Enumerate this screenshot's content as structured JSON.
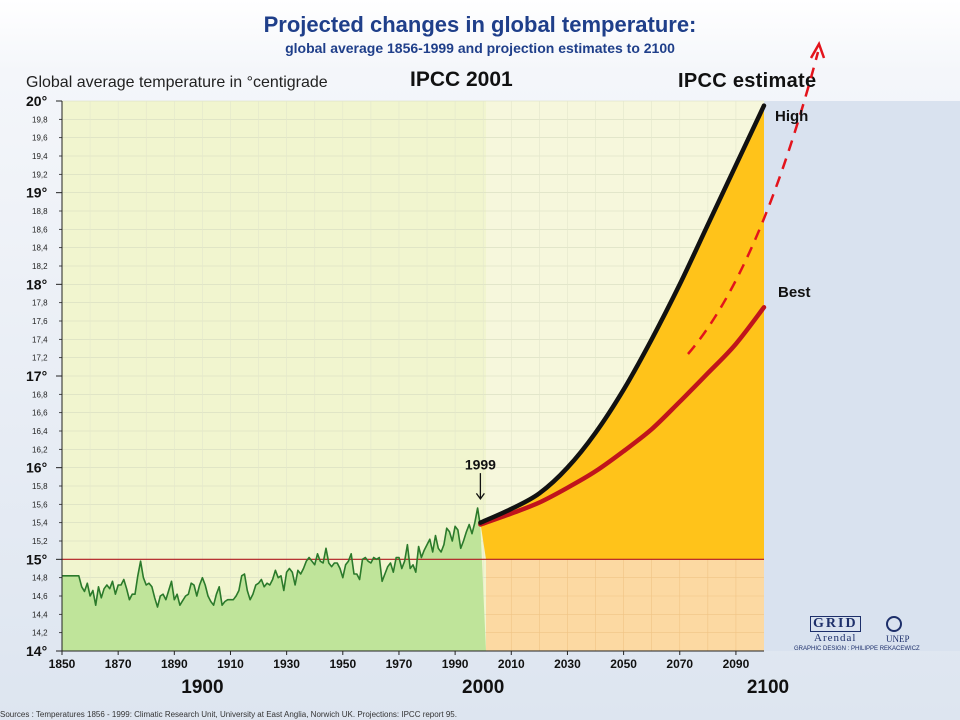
{
  "header": {
    "title": "Projected changes in global temperature:",
    "subtitle": "global average 1856-1999 and projection estimates to 2100",
    "y_axis_label": "Global average temperature in °centigrade",
    "ipcc_label": "IPCC 2001",
    "estimate_label": "IPCC estimate"
  },
  "annotations": {
    "year_marker": "1999",
    "high_label": "High",
    "best_label": "Best"
  },
  "logo": {
    "grid": "GRID",
    "arendal": "Arendal",
    "unep": "UNEP",
    "credit": "GRAPHIC DESIGN : PHILIPPE REKACEWICZ"
  },
  "source_note": "Sources : Temperatures 1856 - 1999: Climatic Research Unit, University at East Anglia, Norwich UK. Projections: IPCC report 95.",
  "colors": {
    "observed_fill": "#bfe49a",
    "observed_line": "#2b7a2b",
    "projection_fill": "#ffc31a",
    "high_line": "#111111",
    "best_line": "#c0141c",
    "baseline": "#b0191e",
    "dashed_arrow": "#e3141c",
    "panel_past": "#f1f5cf",
    "panel_future": "#f6f7dc"
  },
  "chart_data": {
    "type": "line",
    "ylim": [
      14,
      20
    ],
    "xlim": [
      1850,
      2100
    ],
    "y_major_ticks": [
      "14°",
      "15°",
      "16°",
      "17°",
      "18°",
      "19°",
      "20°"
    ],
    "y_minor_ticks": [
      "14,2",
      "14,4",
      "14,6",
      "14,8",
      "15,2",
      "15,4",
      "15,6",
      "15,8",
      "16,2",
      "16,4",
      "16,6",
      "16,8",
      "17,2",
      "17,4",
      "17,6",
      "17,8",
      "18,2",
      "18,4",
      "18,6",
      "18,8",
      "19,2",
      "19,4",
      "19,6",
      "19,8"
    ],
    "x_ticks": [
      "1850",
      "1870",
      "1890",
      "1910",
      "1930",
      "1950",
      "1970",
      "1990",
      "2010",
      "2030",
      "2050",
      "2070",
      "2090"
    ],
    "x_major_labels": [
      "1900",
      "2000",
      "2100"
    ],
    "baseline": 15,
    "series": [
      {
        "name": "",
        "x": [
          1856,
          1857,
          1858,
          1859,
          1860,
          1861,
          1862,
          1863,
          1864,
          1865,
          1866,
          1867,
          1868,
          1869,
          1870,
          1871,
          1872,
          1873,
          1874,
          1875,
          1876,
          1877,
          1878,
          1879,
          1880,
          1881,
          1882,
          1883,
          1884,
          1885,
          1886,
          1887,
          1888,
          1889,
          1890,
          1891,
          1892,
          1893,
          1894,
          1895,
          1896,
          1897,
          1898,
          1899,
          1900,
          1901,
          1902,
          1903,
          1904,
          1905,
          1906,
          1907,
          1908,
          1909,
          1910,
          1911,
          1912,
          1913,
          1914,
          1915,
          1916,
          1917,
          1918,
          1919,
          1920,
          1921,
          1922,
          1923,
          1924,
          1925,
          1926,
          1927,
          1928,
          1929,
          1930,
          1931,
          1932,
          1933,
          1934,
          1935,
          1936,
          1937,
          1938,
          1939,
          1940,
          1941,
          1942,
          1943,
          1944,
          1945,
          1946,
          1947,
          1948,
          1949,
          1950,
          1951,
          1952,
          1953,
          1954,
          1955,
          1956,
          1957,
          1958,
          1959,
          1960,
          1961,
          1962,
          1963,
          1964,
          1965,
          1966,
          1967,
          1968,
          1969,
          1970,
          1971,
          1972,
          1973,
          1974,
          1975,
          1976,
          1977,
          1978,
          1979,
          1980,
          1981,
          1982,
          1983,
          1984,
          1985,
          1986,
          1987,
          1988,
          1989,
          1990,
          1991,
          1992,
          1993,
          1994,
          1995,
          1996,
          1997,
          1998,
          1999
        ],
        "values": [
          14.82,
          14.7,
          14.65,
          14.74,
          14.6,
          14.66,
          14.5,
          14.7,
          14.58,
          14.68,
          14.72,
          14.68,
          14.76,
          14.62,
          14.72,
          14.72,
          14.78,
          14.68,
          14.56,
          14.62,
          14.62,
          14.82,
          14.98,
          14.8,
          14.72,
          14.74,
          14.7,
          14.58,
          14.48,
          14.6,
          14.62,
          14.56,
          14.66,
          14.76,
          14.56,
          14.62,
          14.5,
          14.55,
          14.6,
          14.62,
          14.74,
          14.72,
          14.6,
          14.72,
          14.8,
          14.72,
          14.6,
          14.54,
          14.5,
          14.62,
          14.7,
          14.5,
          14.54,
          14.56,
          14.56,
          14.56,
          14.6,
          14.66,
          14.82,
          14.84,
          14.66,
          14.56,
          14.62,
          14.72,
          14.74,
          14.78,
          14.7,
          14.74,
          14.72,
          14.78,
          14.88,
          14.8,
          14.82,
          14.66,
          14.86,
          14.9,
          14.86,
          14.72,
          14.88,
          14.84,
          14.9,
          14.98,
          15.02,
          14.98,
          14.94,
          15.06,
          14.98,
          14.96,
          15.12,
          14.96,
          14.92,
          14.96,
          14.96,
          14.9,
          14.8,
          14.94,
          14.98,
          15.06,
          14.84,
          14.84,
          14.78,
          15.0,
          15.02,
          14.98,
          14.96,
          15.02,
          15.0,
          15.02,
          14.76,
          14.84,
          14.92,
          14.96,
          14.86,
          15.02,
          15.02,
          14.9,
          14.98,
          15.16,
          14.9,
          14.94,
          14.86,
          15.14,
          15.02,
          15.1,
          15.16,
          15.22,
          15.08,
          15.26,
          15.12,
          15.08,
          15.16,
          15.34,
          15.3,
          15.2,
          15.36,
          15.32,
          15.12,
          15.2,
          15.3,
          15.38,
          15.28,
          15.4,
          15.56,
          15.36
        ]
      },
      {
        "name": "High",
        "x": [
          1999,
          2010,
          2020,
          2030,
          2040,
          2050,
          2060,
          2070,
          2080,
          2090,
          2100
        ],
        "values": [
          15.4,
          15.55,
          15.72,
          16.0,
          16.38,
          16.85,
          17.4,
          18.0,
          18.65,
          19.3,
          19.95
        ]
      },
      {
        "name": "Best",
        "x": [
          1999,
          2010,
          2020,
          2030,
          2040,
          2050,
          2060,
          2070,
          2080,
          2090,
          2100
        ],
        "values": [
          15.38,
          15.5,
          15.62,
          15.78,
          15.96,
          16.18,
          16.42,
          16.72,
          17.03,
          17.35,
          17.75
        ]
      }
    ]
  }
}
